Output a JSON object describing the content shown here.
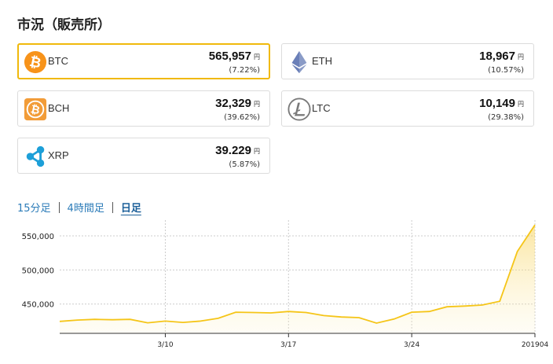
{
  "title": "市況（販売所）",
  "coins": [
    {
      "symbol": "BTC",
      "price": "565,957",
      "unit": "円",
      "change": "(7.22%)",
      "selected": true,
      "icon": "bitcoin-icon",
      "color": "#f7931a"
    },
    {
      "symbol": "ETH",
      "price": "18,967",
      "unit": "円",
      "change": "(10.57%)",
      "selected": false,
      "icon": "ethereum-icon",
      "color": "#627eea"
    },
    {
      "symbol": "BCH",
      "price": "32,329",
      "unit": "円",
      "change": "(39.62%)",
      "selected": false,
      "icon": "bitcoin-cash-icon",
      "color": "#f29c38"
    },
    {
      "symbol": "LTC",
      "price": "10,149",
      "unit": "円",
      "change": "(29.38%)",
      "selected": false,
      "icon": "litecoin-icon",
      "color": "#838383"
    },
    {
      "symbol": "XRP",
      "price": "39.229",
      "unit": "円",
      "change": "(5.87%)",
      "selected": false,
      "icon": "ripple-icon",
      "color": "#1d9fd8"
    }
  ],
  "tabs": [
    {
      "label": "15分足",
      "active": false
    },
    {
      "label": "4時間足",
      "active": false
    },
    {
      "label": "日足",
      "active": true
    }
  ],
  "chart_data": {
    "type": "area",
    "series_color": "#f5c518",
    "x_labels": [
      "3/10",
      "3/17",
      "3/24",
      "201904"
    ],
    "x_label_index": [
      6,
      13,
      20,
      27
    ],
    "y_ticks": [
      "450,000",
      "500,000",
      "550,000"
    ],
    "y_tick_values": [
      450000,
      500000,
      550000
    ],
    "ylim": [
      407000,
      573000
    ],
    "grid": "horizontal-dashed",
    "values": [
      424500,
      426500,
      427500,
      427000,
      427500,
      422500,
      425000,
      423000,
      425000,
      429000,
      438000,
      437500,
      437000,
      439000,
      437500,
      433000,
      431000,
      430000,
      422000,
      428000,
      438000,
      439000,
      446000,
      447000,
      448500,
      454000,
      527000,
      565957
    ]
  }
}
